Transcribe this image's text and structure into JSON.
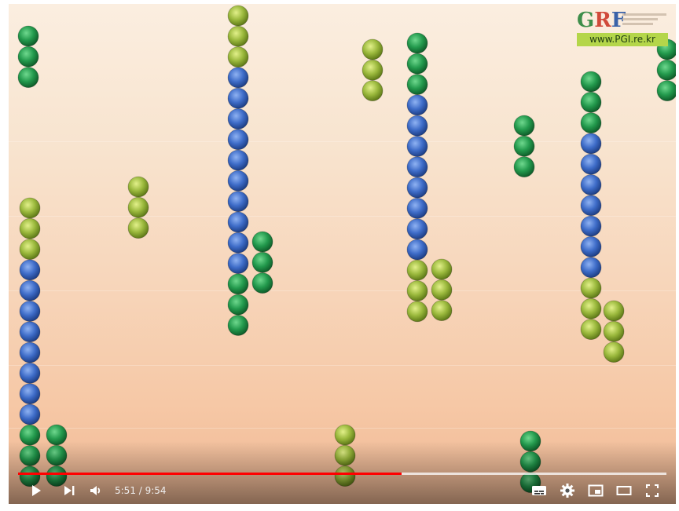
{
  "logo": {
    "text_g": "G",
    "text_r": "R",
    "text_f": "F",
    "url": "www.PGI.re.kr"
  },
  "video": {
    "current_time": "5:51",
    "duration": "9:54",
    "time_display": "5:51 / 9:54",
    "progress_fraction": 0.5917,
    "buffered_fraction": 1.0
  },
  "controls": {
    "play_icon": "play-icon",
    "next_icon": "next-icon",
    "volume_icon": "volume-icon",
    "subtitles_icon": "subtitles-icon",
    "settings_icon": "settings-icon",
    "miniplayer_icon": "miniplayer-icon",
    "theater_icon": "theater-icon",
    "fullscreen_icon": "fullscreen-icon"
  },
  "colors": {
    "green_bead": "#23924a",
    "blue_bead": "#3a68c4",
    "olive_bead": "#9cb83a",
    "progress_red": "#ff0000"
  }
}
